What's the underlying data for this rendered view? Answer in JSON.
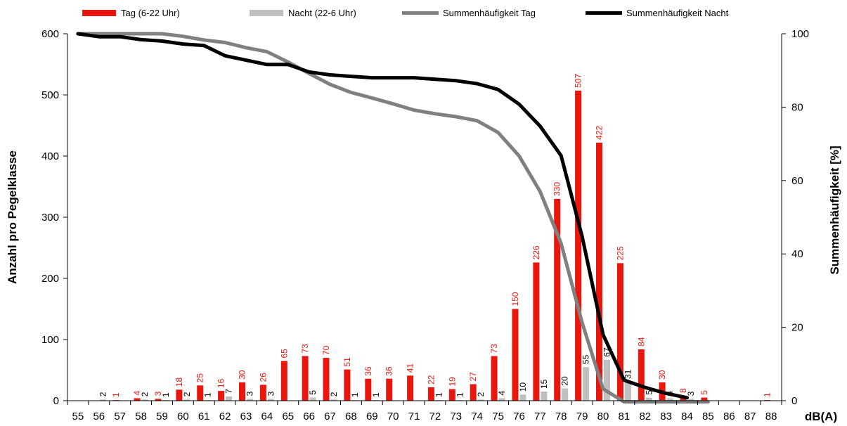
{
  "chart_data": {
    "type": "bar",
    "categories": [
      "55",
      "56",
      "57",
      "58",
      "59",
      "60",
      "61",
      "62",
      "63",
      "64",
      "65",
      "66",
      "67",
      "68",
      "69",
      "70",
      "71",
      "72",
      "73",
      "74",
      "75",
      "76",
      "77",
      "78",
      "79",
      "80",
      "81",
      "82",
      "83",
      "84",
      "85",
      "86",
      "87",
      "88"
    ],
    "series": [
      {
        "name": "Tag (6-22 Uhr)",
        "kind": "bar",
        "axis": "left",
        "color": "#e8160c",
        "values": [
          0,
          0,
          1,
          4,
          3,
          18,
          25,
          16,
          30,
          26,
          65,
          73,
          70,
          51,
          36,
          36,
          41,
          22,
          19,
          27,
          73,
          150,
          226,
          330,
          507,
          422,
          225,
          84,
          30,
          8,
          5,
          0,
          0,
          1
        ],
        "labels": [
          "",
          "",
          "1",
          "4",
          "3",
          "18",
          "25",
          "16",
          "30",
          "26",
          "65",
          "73",
          "70",
          "51",
          "36",
          "36",
          "41",
          "22",
          "19",
          "27",
          "73",
          "150",
          "226",
          "330",
          "507",
          "422",
          "225",
          "84",
          "30",
          "8",
          "5",
          "",
          "",
          "1"
        ]
      },
      {
        "name": "Nacht (22-6 Uhr)",
        "kind": "bar",
        "axis": "left",
        "color": "#bfbfbf",
        "label_color": "#000000",
        "values": [
          0,
          2,
          0,
          2,
          1,
          2,
          1,
          7,
          3,
          3,
          0,
          5,
          2,
          1,
          1,
          0,
          0,
          1,
          1,
          2,
          4,
          10,
          15,
          20,
          55,
          67,
          31,
          5,
          4,
          3,
          0,
          0,
          0,
          0
        ],
        "labels": [
          "",
          "2",
          "",
          "2",
          "1",
          "2",
          "1",
          "7",
          "3",
          "3",
          "",
          "5",
          "2",
          "1",
          "1",
          "",
          "",
          "1",
          "1",
          "2",
          "4",
          "10",
          "15",
          "20",
          "55",
          "67",
          "31",
          "5",
          "4",
          "3",
          "",
          "",
          "",
          ""
        ]
      },
      {
        "name": "Summenhäufigkeit Tag",
        "kind": "line",
        "axis": "right",
        "color": "#808080",
        "values": [
          100,
          100,
          100,
          100,
          100,
          99.3,
          98.3,
          97.6,
          96.2,
          95.1,
          92.3,
          89.2,
          86.2,
          84,
          82.5,
          80.9,
          79.2,
          78.2,
          77.4,
          76.3,
          73.1,
          66.7,
          57,
          42.9,
          21.3,
          3.2,
          -0.3,
          -0.3,
          -0.3,
          -0.3,
          -0.3,
          null,
          null,
          null
        ]
      },
      {
        "name": "Summenhäufigkeit Nacht",
        "kind": "line",
        "axis": "right",
        "color": "#000000",
        "values": [
          100,
          99.2,
          99.2,
          98.4,
          98,
          97.2,
          96.8,
          94,
          92.8,
          91.6,
          91.6,
          89.6,
          88.8,
          88.4,
          88,
          88,
          88,
          87.6,
          87.2,
          86.4,
          84.8,
          80.8,
          74.8,
          66.8,
          44.8,
          18,
          5.6,
          3.6,
          2,
          0.8,
          null,
          null,
          null,
          null
        ]
      }
    ],
    "y_left": {
      "label": "Anzahl pro Pegelklasse",
      "min": 0,
      "max": 600,
      "ticks": [
        0,
        100,
        200,
        300,
        400,
        500,
        600
      ]
    },
    "y_right": {
      "label": "Summenhäufigkeit [%]",
      "min": 0,
      "max": 100,
      "ticks": [
        0,
        20,
        40,
        60,
        80,
        100
      ]
    },
    "xlabel": "dB(A)",
    "legend_position": "top",
    "grid": false
  }
}
